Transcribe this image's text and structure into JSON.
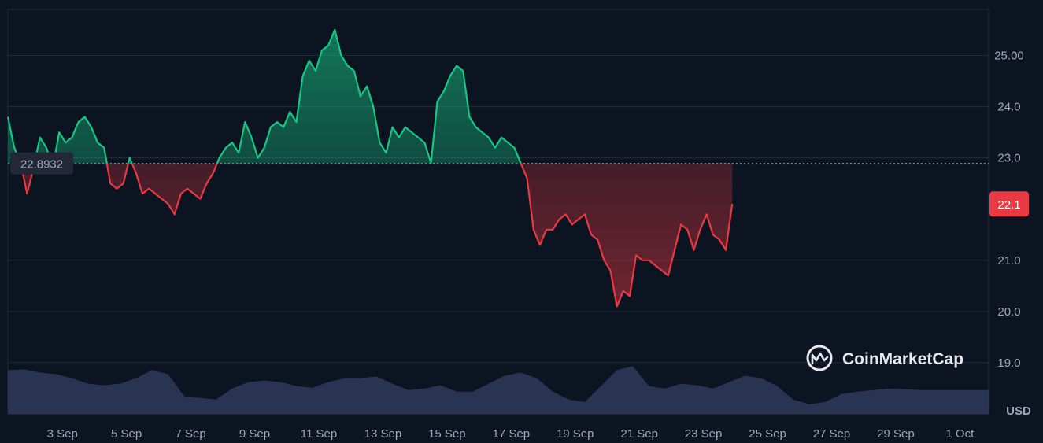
{
  "brand": {
    "name": "CoinMarketCap",
    "logo_icon": "coinmarketcap-logo-icon"
  },
  "currency_label": "USD",
  "colors": {
    "up": "#16c784",
    "down": "#ea3943",
    "background": "#0d1421",
    "volume": "#2f3a5c"
  },
  "chart_data": {
    "type": "area",
    "baseline": 22.8932,
    "baseline_label": "22.8932",
    "current_value": 22.1,
    "current_label": "22.1",
    "ylim": [
      18.0,
      25.9
    ],
    "y_ticks": [
      {
        "value": 25,
        "label": "25.00"
      },
      {
        "value": 24,
        "label": "24.0"
      },
      {
        "value": 23,
        "label": "23.0"
      },
      {
        "value": 21,
        "label": "21.0"
      },
      {
        "value": 20,
        "label": "20.0"
      },
      {
        "value": 19,
        "label": "19.0"
      }
    ],
    "xlim": [
      1.0,
      31.6
    ],
    "x_ticks": [
      {
        "day": 2.7,
        "label": "3 Sep"
      },
      {
        "day": 4.7,
        "label": "5 Sep"
      },
      {
        "day": 6.7,
        "label": "7 Sep"
      },
      {
        "day": 8.7,
        "label": "9 Sep"
      },
      {
        "day": 10.7,
        "label": "11 Sep"
      },
      {
        "day": 12.7,
        "label": "13 Sep"
      },
      {
        "day": 14.7,
        "label": "15 Sep"
      },
      {
        "day": 16.7,
        "label": "17 Sep"
      },
      {
        "day": 18.7,
        "label": "19 Sep"
      },
      {
        "day": 20.7,
        "label": "21 Sep"
      },
      {
        "day": 22.7,
        "label": "23 Sep"
      },
      {
        "day": 24.7,
        "label": "25 Sep"
      },
      {
        "day": 26.7,
        "label": "27 Sep"
      },
      {
        "day": 28.7,
        "label": "29 Sep"
      },
      {
        "day": 30.7,
        "label": "1 Oct"
      }
    ],
    "price": [
      [
        1.0,
        23.8
      ],
      [
        1.2,
        23.2
      ],
      [
        1.4,
        22.9
      ],
      [
        1.6,
        22.3
      ],
      [
        1.8,
        22.8
      ],
      [
        2.0,
        23.4
      ],
      [
        2.2,
        23.2
      ],
      [
        2.4,
        22.8
      ],
      [
        2.6,
        23.5
      ],
      [
        2.8,
        23.3
      ],
      [
        3.0,
        23.4
      ],
      [
        3.2,
        23.7
      ],
      [
        3.4,
        23.8
      ],
      [
        3.6,
        23.6
      ],
      [
        3.8,
        23.3
      ],
      [
        4.0,
        23.2
      ],
      [
        4.2,
        22.5
      ],
      [
        4.4,
        22.4
      ],
      [
        4.6,
        22.5
      ],
      [
        4.8,
        23.0
      ],
      [
        5.0,
        22.7
      ],
      [
        5.2,
        22.3
      ],
      [
        5.4,
        22.4
      ],
      [
        5.6,
        22.3
      ],
      [
        5.8,
        22.2
      ],
      [
        6.0,
        22.1
      ],
      [
        6.2,
        21.9
      ],
      [
        6.4,
        22.3
      ],
      [
        6.6,
        22.4
      ],
      [
        6.8,
        22.3
      ],
      [
        7.0,
        22.2
      ],
      [
        7.2,
        22.5
      ],
      [
        7.4,
        22.7
      ],
      [
        7.6,
        23.0
      ],
      [
        7.8,
        23.2
      ],
      [
        8.0,
        23.3
      ],
      [
        8.2,
        23.1
      ],
      [
        8.4,
        23.7
      ],
      [
        8.6,
        23.4
      ],
      [
        8.8,
        23.0
      ],
      [
        9.0,
        23.2
      ],
      [
        9.2,
        23.6
      ],
      [
        9.4,
        23.7
      ],
      [
        9.6,
        23.6
      ],
      [
        9.8,
        23.9
      ],
      [
        10.0,
        23.7
      ],
      [
        10.2,
        24.6
      ],
      [
        10.4,
        24.9
      ],
      [
        10.6,
        24.7
      ],
      [
        10.8,
        25.1
      ],
      [
        11.0,
        25.2
      ],
      [
        11.2,
        25.5
      ],
      [
        11.4,
        25.0
      ],
      [
        11.6,
        24.8
      ],
      [
        11.8,
        24.7
      ],
      [
        12.0,
        24.2
      ],
      [
        12.2,
        24.4
      ],
      [
        12.4,
        24.0
      ],
      [
        12.6,
        23.3
      ],
      [
        12.8,
        23.1
      ],
      [
        13.0,
        23.6
      ],
      [
        13.2,
        23.4
      ],
      [
        13.4,
        23.6
      ],
      [
        13.6,
        23.5
      ],
      [
        13.8,
        23.4
      ],
      [
        14.0,
        23.3
      ],
      [
        14.2,
        22.9
      ],
      [
        14.4,
        24.1
      ],
      [
        14.6,
        24.3
      ],
      [
        14.8,
        24.6
      ],
      [
        15.0,
        24.8
      ],
      [
        15.2,
        24.7
      ],
      [
        15.4,
        23.8
      ],
      [
        15.6,
        23.6
      ],
      [
        15.8,
        23.5
      ],
      [
        16.0,
        23.4
      ],
      [
        16.2,
        23.2
      ],
      [
        16.4,
        23.4
      ],
      [
        16.6,
        23.3
      ],
      [
        16.8,
        23.2
      ],
      [
        17.0,
        22.9
      ],
      [
        17.2,
        22.6
      ],
      [
        17.4,
        21.6
      ],
      [
        17.6,
        21.3
      ],
      [
        17.8,
        21.6
      ],
      [
        18.0,
        21.6
      ],
      [
        18.2,
        21.8
      ],
      [
        18.4,
        21.9
      ],
      [
        18.6,
        21.7
      ],
      [
        18.8,
        21.8
      ],
      [
        19.0,
        21.9
      ],
      [
        19.2,
        21.5
      ],
      [
        19.4,
        21.4
      ],
      [
        19.6,
        21.0
      ],
      [
        19.8,
        20.8
      ],
      [
        20.0,
        20.1
      ],
      [
        20.2,
        20.4
      ],
      [
        20.4,
        20.3
      ],
      [
        20.6,
        21.1
      ],
      [
        20.8,
        21.0
      ],
      [
        21.0,
        21.0
      ],
      [
        21.2,
        20.9
      ],
      [
        21.4,
        20.8
      ],
      [
        21.6,
        20.7
      ],
      [
        21.8,
        21.2
      ],
      [
        22.0,
        21.7
      ],
      [
        22.2,
        21.6
      ],
      [
        22.4,
        21.2
      ],
      [
        22.6,
        21.6
      ],
      [
        22.8,
        21.9
      ],
      [
        23.0,
        21.5
      ],
      [
        23.2,
        21.4
      ],
      [
        23.4,
        21.2
      ],
      [
        23.6,
        22.1
      ]
    ],
    "volume": [
      [
        1.0,
        0.55
      ],
      [
        1.5,
        0.56
      ],
      [
        2.0,
        0.52
      ],
      [
        2.5,
        0.5
      ],
      [
        3.0,
        0.45
      ],
      [
        3.5,
        0.38
      ],
      [
        4.0,
        0.36
      ],
      [
        4.5,
        0.38
      ],
      [
        5.0,
        0.45
      ],
      [
        5.5,
        0.55
      ],
      [
        6.0,
        0.5
      ],
      [
        6.5,
        0.22
      ],
      [
        7.0,
        0.2
      ],
      [
        7.5,
        0.18
      ],
      [
        8.0,
        0.32
      ],
      [
        8.5,
        0.4
      ],
      [
        9.0,
        0.42
      ],
      [
        9.5,
        0.4
      ],
      [
        10.0,
        0.35
      ],
      [
        10.5,
        0.33
      ],
      [
        11.0,
        0.4
      ],
      [
        11.5,
        0.45
      ],
      [
        12.0,
        0.45
      ],
      [
        12.5,
        0.47
      ],
      [
        13.0,
        0.38
      ],
      [
        13.5,
        0.3
      ],
      [
        14.0,
        0.32
      ],
      [
        14.5,
        0.36
      ],
      [
        15.0,
        0.28
      ],
      [
        15.5,
        0.28
      ],
      [
        16.0,
        0.38
      ],
      [
        16.5,
        0.48
      ],
      [
        17.0,
        0.52
      ],
      [
        17.5,
        0.45
      ],
      [
        18.0,
        0.28
      ],
      [
        18.5,
        0.18
      ],
      [
        19.0,
        0.15
      ],
      [
        19.5,
        0.35
      ],
      [
        20.0,
        0.55
      ],
      [
        20.5,
        0.6
      ],
      [
        21.0,
        0.35
      ],
      [
        21.5,
        0.32
      ],
      [
        22.0,
        0.38
      ],
      [
        22.5,
        0.36
      ],
      [
        23.0,
        0.32
      ],
      [
        23.5,
        0.4
      ],
      [
        24.0,
        0.48
      ],
      [
        24.5,
        0.45
      ],
      [
        25.0,
        0.35
      ],
      [
        25.5,
        0.18
      ],
      [
        26.0,
        0.12
      ],
      [
        26.5,
        0.15
      ],
      [
        27.0,
        0.25
      ],
      [
        27.5,
        0.28
      ],
      [
        28.0,
        0.3
      ],
      [
        28.5,
        0.32
      ],
      [
        29.0,
        0.31
      ],
      [
        29.5,
        0.3
      ]
    ],
    "volume_max": 1.0,
    "grid": true,
    "xlabel": "",
    "ylabel": "USD"
  }
}
